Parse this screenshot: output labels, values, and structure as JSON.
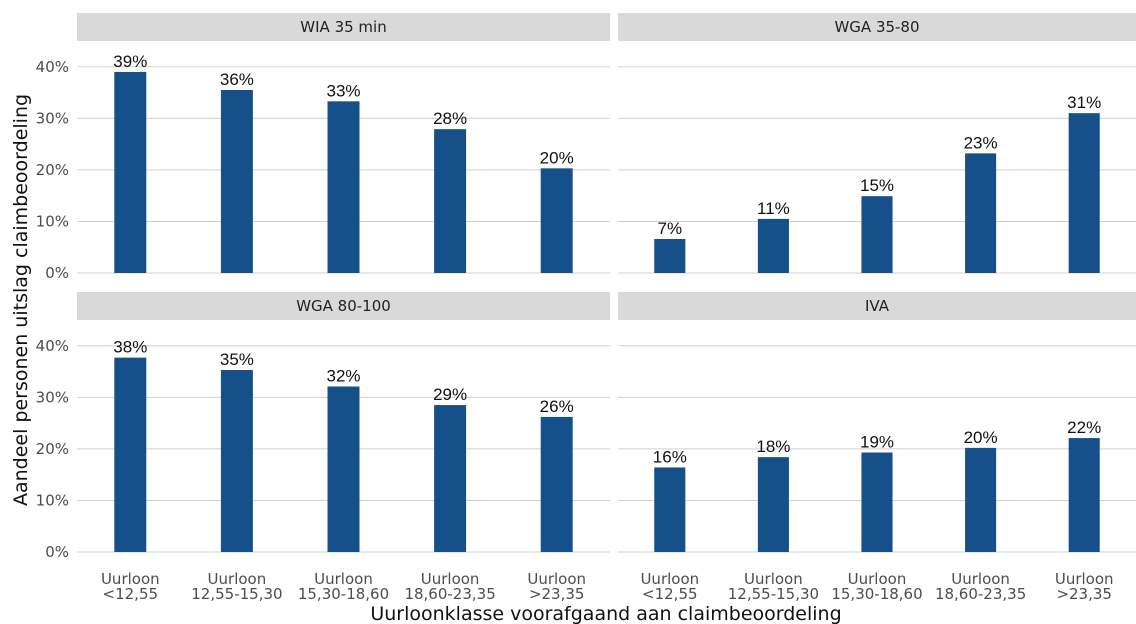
{
  "chart_data": {
    "type": "bar",
    "facet_layout": "2x2",
    "xlabel": "Uurloonklasse voorafgaand aan claimbeoordeling",
    "ylabel": "Aandeel personen uitslag claimbeoordeling",
    "ylim": [
      0,
      0.45
    ],
    "yticks": [
      "0%",
      "10%",
      "20%",
      "30%",
      "40%"
    ],
    "grid": true,
    "bar_color": "#16508a",
    "strip_color": "#d9d9d9",
    "categories": [
      [
        "Uurloon",
        "<12,55"
      ],
      [
        "Uurloon",
        "12,55-15,30"
      ],
      [
        "Uurloon",
        "15,30-18,60"
      ],
      [
        "Uurloon",
        "18,60-23,35"
      ],
      [
        "Uurloon",
        ">23,35"
      ]
    ],
    "panels": [
      {
        "title": "WIA 35 min",
        "values": [
          0.39,
          0.355,
          0.333,
          0.279,
          0.203
        ],
        "labels": [
          "39%",
          "36%",
          "33%",
          "28%",
          "20%"
        ]
      },
      {
        "title": "WGA 35-80",
        "values": [
          0.066,
          0.105,
          0.149,
          0.232,
          0.31
        ],
        "labels": [
          "7%",
          "11%",
          "15%",
          "23%",
          "31%"
        ]
      },
      {
        "title": "WGA 80-100",
        "values": [
          0.377,
          0.353,
          0.321,
          0.285,
          0.262
        ],
        "labels": [
          "38%",
          "35%",
          "32%",
          "29%",
          "26%"
        ]
      },
      {
        "title": "IVA",
        "values": [
          0.164,
          0.184,
          0.193,
          0.202,
          0.221
        ],
        "labels": [
          "16%",
          "18%",
          "19%",
          "20%",
          "22%"
        ]
      }
    ]
  }
}
